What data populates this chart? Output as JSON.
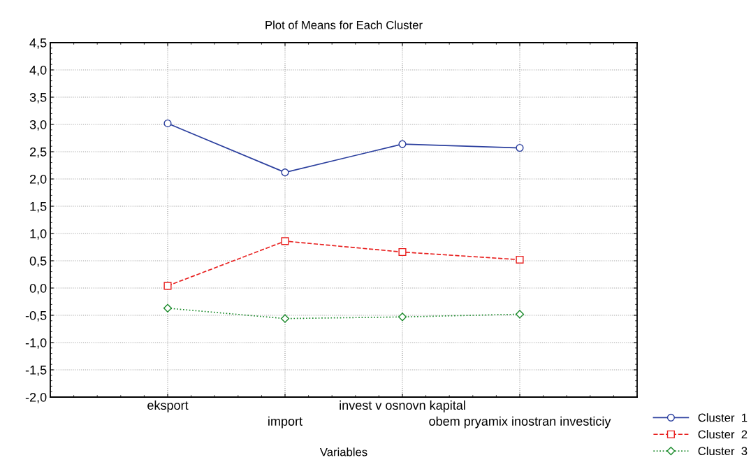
{
  "chart_data": {
    "type": "line",
    "title": "Plot of Means for Each Cluster",
    "xlabel": "Variables",
    "categories": [
      "eksport",
      "import",
      "invest v osnovn kapital",
      "obem pryamix inostran investiciy"
    ],
    "series": [
      {
        "name": "Cluster  1",
        "color": "#2b3f9e",
        "marker": "circle",
        "line_style": "solid",
        "values": [
          3.02,
          2.12,
          2.64,
          2.57
        ]
      },
      {
        "name": "Cluster  2",
        "color": "#e8201f",
        "marker": "square",
        "line_style": "dashed",
        "values": [
          0.04,
          0.86,
          0.66,
          0.52
        ]
      },
      {
        "name": "Cluster  3",
        "color": "#1a8a2a",
        "marker": "diamond",
        "line_style": "dotted",
        "values": [
          -0.37,
          -0.56,
          -0.53,
          -0.48
        ]
      }
    ],
    "ylim": [
      -2.0,
      4.5
    ],
    "yticks": [
      {
        "value": -2.0,
        "label": "-2,0"
      },
      {
        "value": -1.5,
        "label": "-1,5"
      },
      {
        "value": -1.0,
        "label": "-1,0"
      },
      {
        "value": -0.5,
        "label": "-0,5"
      },
      {
        "value": 0.0,
        "label": "0,0"
      },
      {
        "value": 0.5,
        "label": "0,5"
      },
      {
        "value": 1.0,
        "label": "1,0"
      },
      {
        "value": 1.5,
        "label": "1,5"
      },
      {
        "value": 2.0,
        "label": "2,0"
      },
      {
        "value": 2.5,
        "label": "2,5"
      },
      {
        "value": 3.0,
        "label": "3,0"
      },
      {
        "value": 3.5,
        "label": "3,5"
      },
      {
        "value": 4.0,
        "label": "4,0"
      },
      {
        "value": 4.5,
        "label": "4,5"
      }
    ],
    "grid": true,
    "legend": "bottom right"
  }
}
